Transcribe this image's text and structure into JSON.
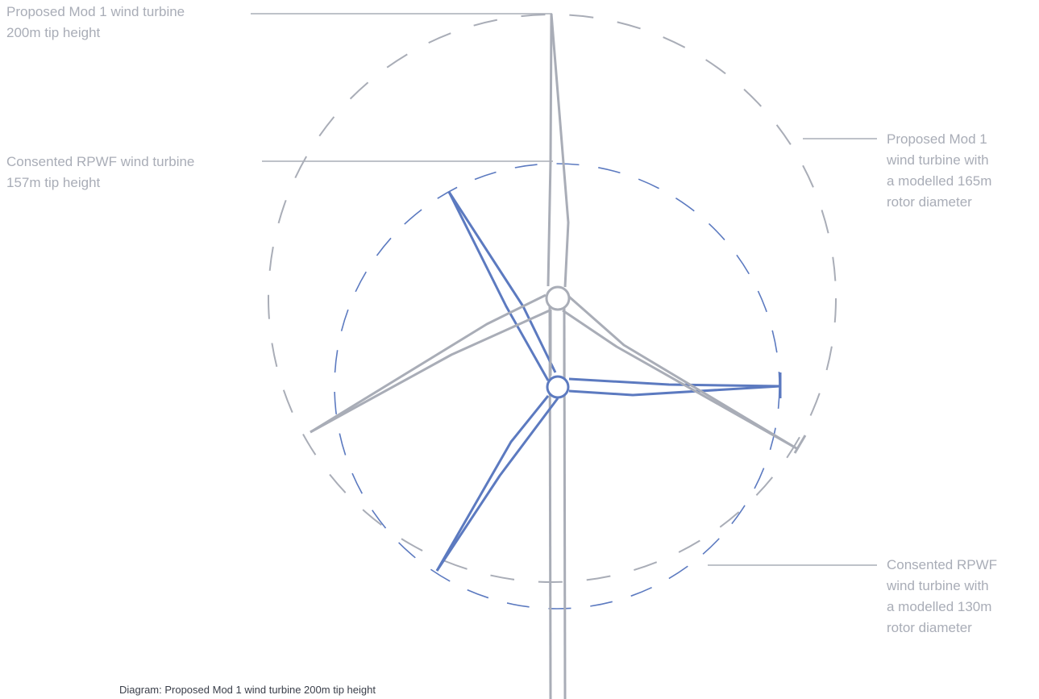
{
  "colors": {
    "proposed": "#a9adb7",
    "consented": "#5c7ac0",
    "caption": "#3a3f4a"
  },
  "labels": {
    "proposed_tip": "Proposed Mod 1 wind turbine\n200m tip height",
    "consented_tip": "Consented RPWF wind turbine\n157m tip height",
    "proposed_rotor": "Proposed Mod 1\nwind turbine with\na modelled 165m\nrotor diameter",
    "consented_rotor": "Consented RPWF\nwind turbine with\na modelled 130m\nrotor diameter"
  },
  "caption": "Diagram: Proposed Mod 1 wind turbine 200m tip height"
}
